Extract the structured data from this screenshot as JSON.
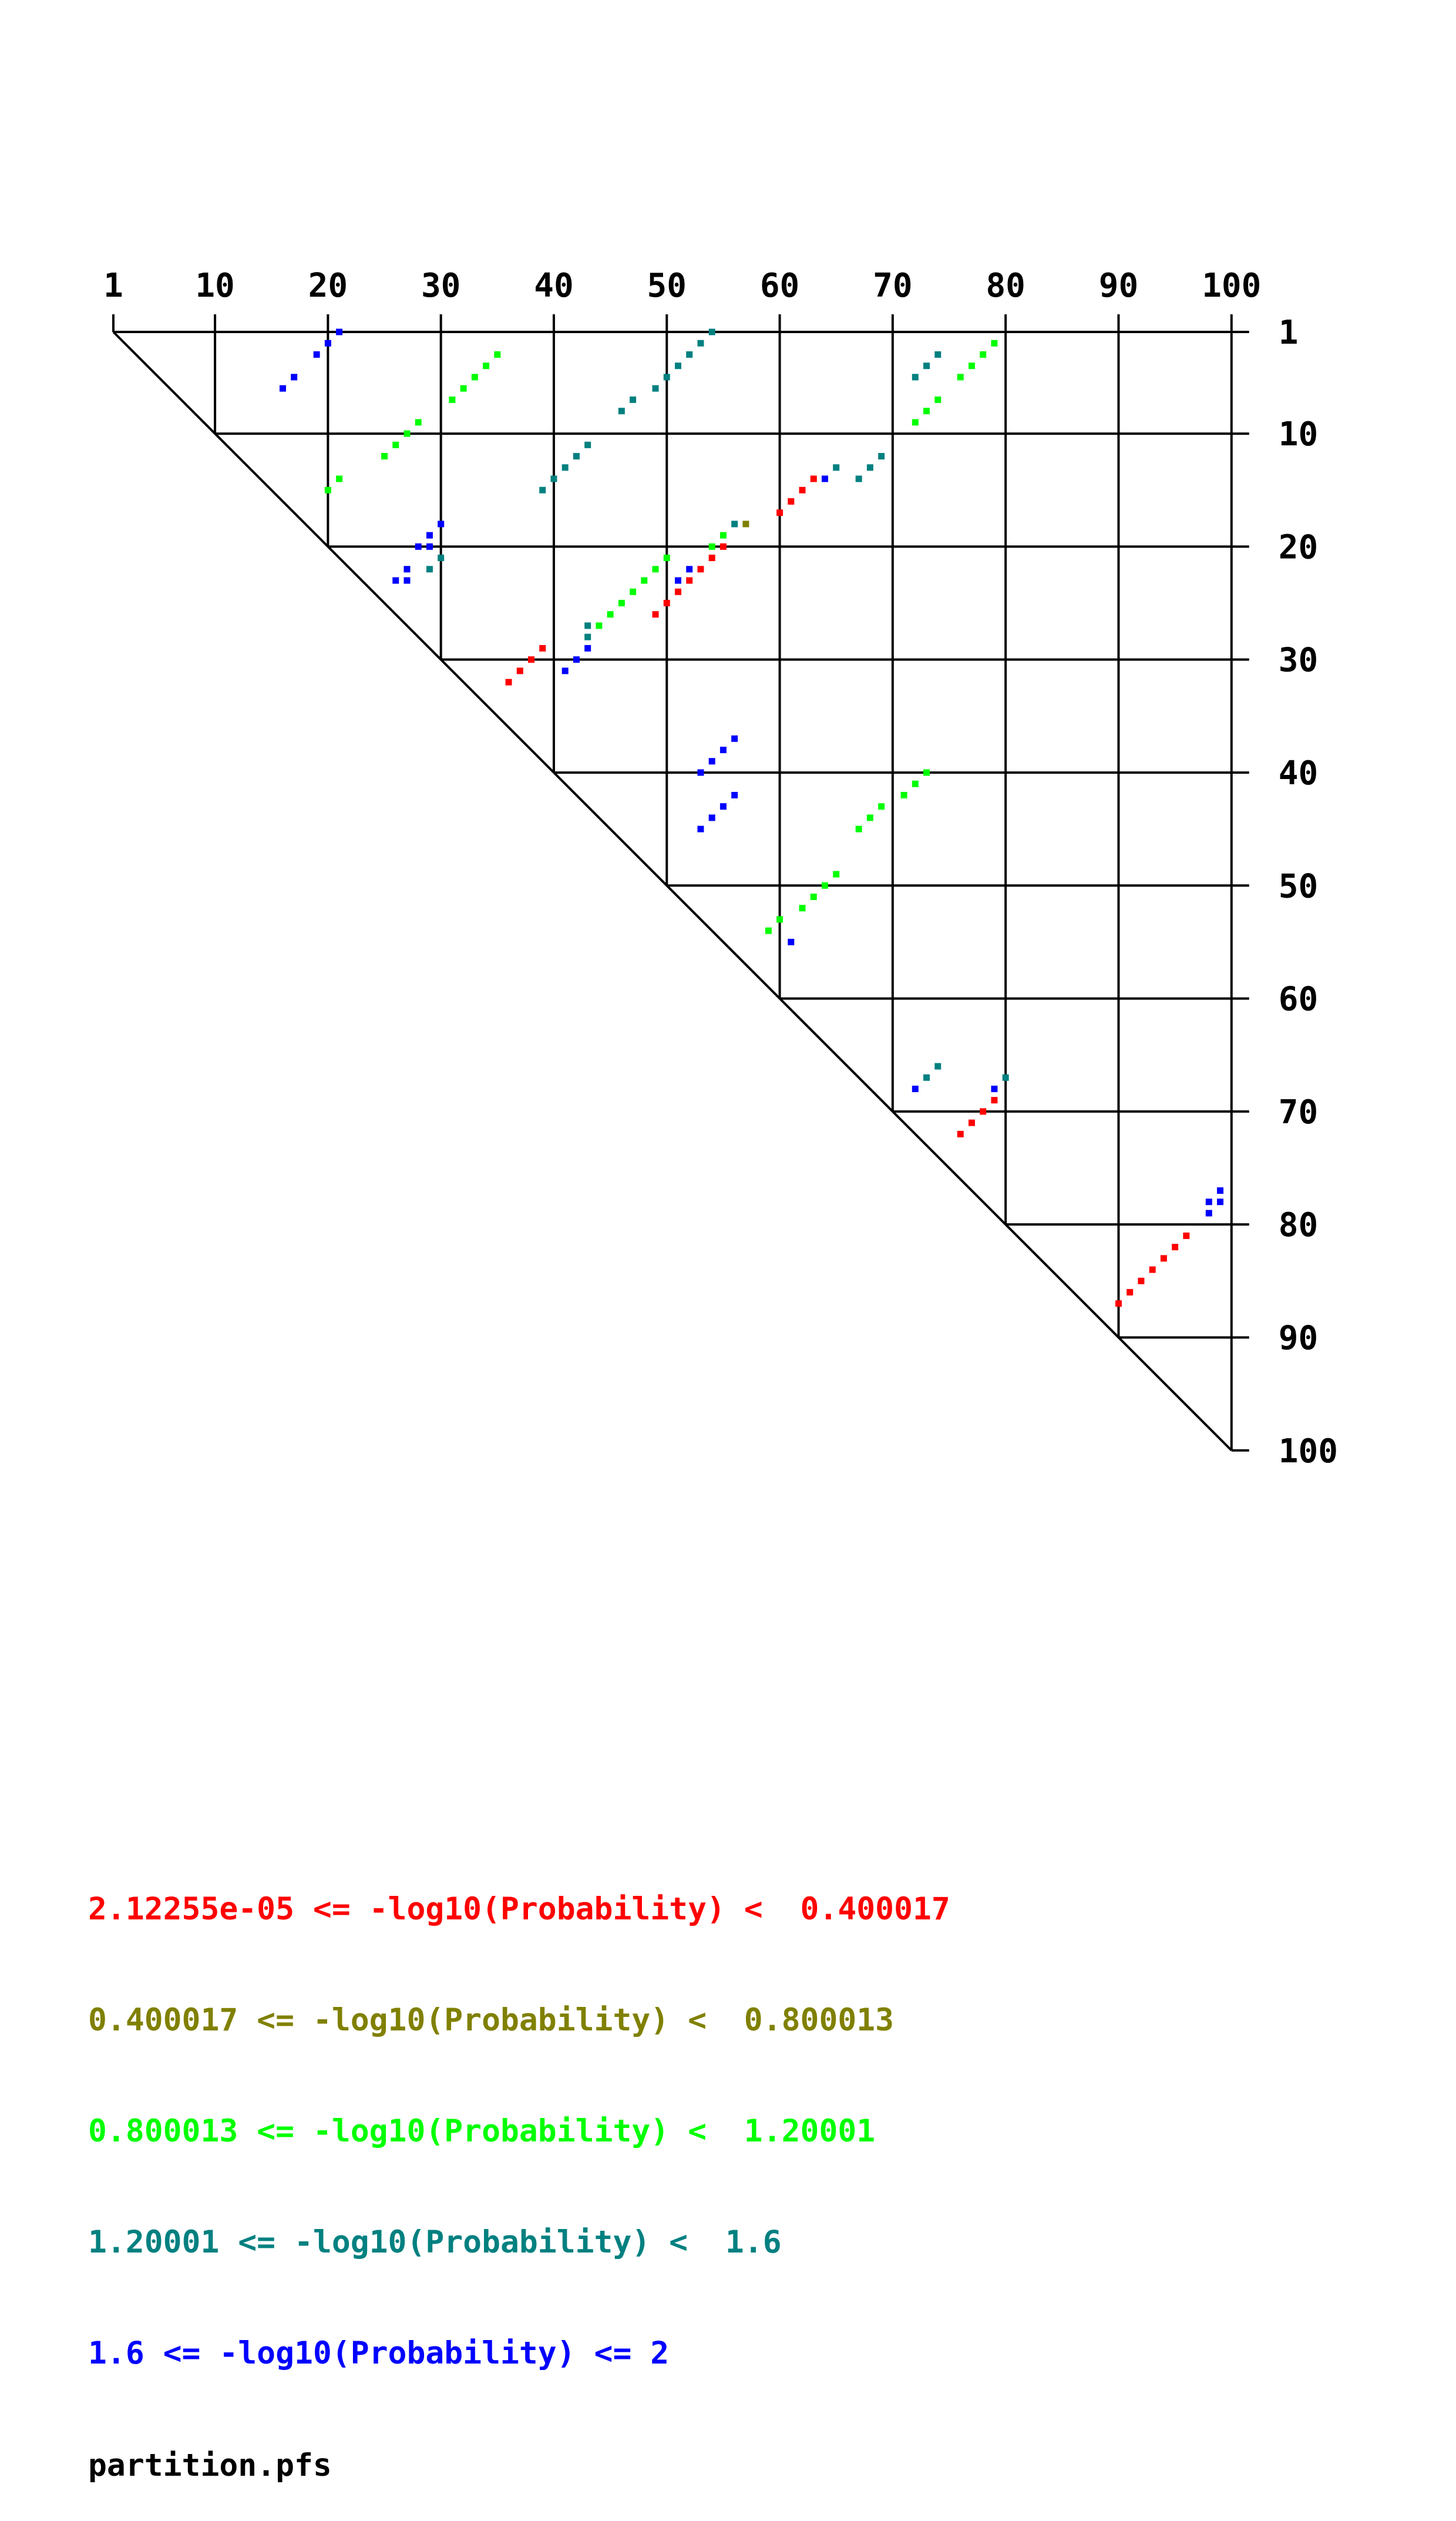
{
  "chart_data": {
    "type": "dotplot",
    "length": 100,
    "x_ticks": [
      1,
      10,
      20,
      30,
      40,
      50,
      60,
      70,
      80,
      90,
      100
    ],
    "y_ticks": [
      1,
      10,
      20,
      30,
      40,
      50,
      60,
      70,
      80,
      90,
      100
    ],
    "tick_labels": [
      "1",
      "10",
      "20",
      "30",
      "40",
      "50",
      "60",
      "70",
      "80",
      "90",
      "100"
    ],
    "legend": [
      {
        "text": "2.12255e-05 <= -log10(Probability) <  0.400017",
        "color": "#ff0000"
      },
      {
        "text": "0.400017 <= -log10(Probability) <  0.800013",
        "color": "#808000"
      },
      {
        "text": "0.800013 <= -log10(Probability) <  1.20001",
        "color": "#00ff00"
      },
      {
        "text": "1.20001 <= -log10(Probability) <  1.6",
        "color": "#008080"
      },
      {
        "text": "1.6 <= -log10(Probability) <= 2",
        "color": "#0000ff"
      }
    ],
    "caption": "partition.pfs",
    "points": [
      {
        "i": 1,
        "j": 21,
        "c": 4
      },
      {
        "i": 2,
        "j": 20,
        "c": 4
      },
      {
        "i": 3,
        "j": 19,
        "c": 4
      },
      {
        "i": 5,
        "j": 17,
        "c": 4
      },
      {
        "i": 6,
        "j": 16,
        "c": 4
      },
      {
        "i": 3,
        "j": 35,
        "c": 2
      },
      {
        "i": 4,
        "j": 34,
        "c": 2
      },
      {
        "i": 5,
        "j": 33,
        "c": 2
      },
      {
        "i": 6,
        "j": 32,
        "c": 2
      },
      {
        "i": 7,
        "j": 31,
        "c": 2
      },
      {
        "i": 9,
        "j": 28,
        "c": 2
      },
      {
        "i": 10,
        "j": 27,
        "c": 2
      },
      {
        "i": 11,
        "j": 26,
        "c": 2
      },
      {
        "i": 12,
        "j": 25,
        "c": 2
      },
      {
        "i": 14,
        "j": 21,
        "c": 2
      },
      {
        "i": 15,
        "j": 20,
        "c": 2
      },
      {
        "i": 1,
        "j": 54,
        "c": 3
      },
      {
        "i": 2,
        "j": 53,
        "c": 3
      },
      {
        "i": 3,
        "j": 52,
        "c": 3
      },
      {
        "i": 4,
        "j": 51,
        "c": 3
      },
      {
        "i": 5,
        "j": 50,
        "c": 3
      },
      {
        "i": 6,
        "j": 49,
        "c": 3
      },
      {
        "i": 7,
        "j": 47,
        "c": 3
      },
      {
        "i": 8,
        "j": 46,
        "c": 3
      },
      {
        "i": 11,
        "j": 43,
        "c": 3
      },
      {
        "i": 12,
        "j": 42,
        "c": 3
      },
      {
        "i": 13,
        "j": 41,
        "c": 3
      },
      {
        "i": 14,
        "j": 40,
        "c": 3
      },
      {
        "i": 15,
        "j": 39,
        "c": 3
      },
      {
        "i": 3,
        "j": 74,
        "c": 3
      },
      {
        "i": 4,
        "j": 73,
        "c": 3
      },
      {
        "i": 5,
        "j": 72,
        "c": 3
      },
      {
        "i": 2,
        "j": 79,
        "c": 2
      },
      {
        "i": 3,
        "j": 78,
        "c": 2
      },
      {
        "i": 4,
        "j": 77,
        "c": 2
      },
      {
        "i": 5,
        "j": 76,
        "c": 2
      },
      {
        "i": 7,
        "j": 74,
        "c": 2
      },
      {
        "i": 8,
        "j": 73,
        "c": 2
      },
      {
        "i": 9,
        "j": 72,
        "c": 2
      },
      {
        "i": 12,
        "j": 69,
        "c": 3
      },
      {
        "i": 13,
        "j": 68,
        "c": 3
      },
      {
        "i": 14,
        "j": 67,
        "c": 3
      },
      {
        "i": 13,
        "j": 65,
        "c": 3
      },
      {
        "i": 14,
        "j": 64,
        "c": 4
      },
      {
        "i": 14,
        "j": 63,
        "c": 0
      },
      {
        "i": 15,
        "j": 62,
        "c": 0
      },
      {
        "i": 16,
        "j": 61,
        "c": 0
      },
      {
        "i": 17,
        "j": 60,
        "c": 0
      },
      {
        "i": 18,
        "j": 30,
        "c": 4
      },
      {
        "i": 19,
        "j": 29,
        "c": 4
      },
      {
        "i": 20,
        "j": 28,
        "c": 4
      },
      {
        "i": 20,
        "j": 29,
        "c": 4
      },
      {
        "i": 21,
        "j": 30,
        "c": 3
      },
      {
        "i": 22,
        "j": 29,
        "c": 3
      },
      {
        "i": 22,
        "j": 27,
        "c": 4
      },
      {
        "i": 23,
        "j": 27,
        "c": 4
      },
      {
        "i": 23,
        "j": 26,
        "c": 4
      },
      {
        "i": 18,
        "j": 57,
        "c": 1
      },
      {
        "i": 18,
        "j": 56,
        "c": 3
      },
      {
        "i": 19,
        "j": 55,
        "c": 2
      },
      {
        "i": 20,
        "j": 54,
        "c": 2
      },
      {
        "i": 21,
        "j": 50,
        "c": 2
      },
      {
        "i": 22,
        "j": 49,
        "c": 2
      },
      {
        "i": 23,
        "j": 48,
        "c": 2
      },
      {
        "i": 24,
        "j": 47,
        "c": 2
      },
      {
        "i": 25,
        "j": 46,
        "c": 2
      },
      {
        "i": 26,
        "j": 45,
        "c": 2
      },
      {
        "i": 27,
        "j": 44,
        "c": 2
      },
      {
        "i": 20,
        "j": 55,
        "c": 0
      },
      {
        "i": 21,
        "j": 54,
        "c": 0
      },
      {
        "i": 22,
        "j": 53,
        "c": 0
      },
      {
        "i": 23,
        "j": 52,
        "c": 0
      },
      {
        "i": 24,
        "j": 51,
        "c": 0
      },
      {
        "i": 25,
        "j": 50,
        "c": 0
      },
      {
        "i": 26,
        "j": 49,
        "c": 0
      },
      {
        "i": 22,
        "j": 52,
        "c": 4
      },
      {
        "i": 23,
        "j": 51,
        "c": 4
      },
      {
        "i": 27,
        "j": 43,
        "c": 3
      },
      {
        "i": 28,
        "j": 43,
        "c": 3
      },
      {
        "i": 29,
        "j": 43,
        "c": 4
      },
      {
        "i": 30,
        "j": 42,
        "c": 4
      },
      {
        "i": 31,
        "j": 41,
        "c": 4
      },
      {
        "i": 29,
        "j": 39,
        "c": 0
      },
      {
        "i": 30,
        "j": 38,
        "c": 0
      },
      {
        "i": 31,
        "j": 37,
        "c": 0
      },
      {
        "i": 32,
        "j": 36,
        "c": 0
      },
      {
        "i": 37,
        "j": 56,
        "c": 4
      },
      {
        "i": 38,
        "j": 55,
        "c": 4
      },
      {
        "i": 39,
        "j": 54,
        "c": 4
      },
      {
        "i": 40,
        "j": 53,
        "c": 4
      },
      {
        "i": 42,
        "j": 56,
        "c": 4
      },
      {
        "i": 43,
        "j": 55,
        "c": 4
      },
      {
        "i": 44,
        "j": 54,
        "c": 4
      },
      {
        "i": 45,
        "j": 53,
        "c": 4
      },
      {
        "i": 40,
        "j": 73,
        "c": 2
      },
      {
        "i": 41,
        "j": 72,
        "c": 2
      },
      {
        "i": 42,
        "j": 71,
        "c": 2
      },
      {
        "i": 43,
        "j": 69,
        "c": 2
      },
      {
        "i": 44,
        "j": 68,
        "c": 2
      },
      {
        "i": 45,
        "j": 67,
        "c": 2
      },
      {
        "i": 49,
        "j": 65,
        "c": 2
      },
      {
        "i": 50,
        "j": 64,
        "c": 2
      },
      {
        "i": 51,
        "j": 63,
        "c": 2
      },
      {
        "i": 52,
        "j": 62,
        "c": 2
      },
      {
        "i": 53,
        "j": 60,
        "c": 2
      },
      {
        "i": 54,
        "j": 59,
        "c": 2
      },
      {
        "i": 55,
        "j": 61,
        "c": 4
      },
      {
        "i": 66,
        "j": 74,
        "c": 3
      },
      {
        "i": 67,
        "j": 73,
        "c": 3
      },
      {
        "i": 68,
        "j": 72,
        "c": 4
      },
      {
        "i": 67,
        "j": 80,
        "c": 3
      },
      {
        "i": 68,
        "j": 79,
        "c": 4
      },
      {
        "i": 69,
        "j": 79,
        "c": 0
      },
      {
        "i": 70,
        "j": 78,
        "c": 0
      },
      {
        "i": 71,
        "j": 77,
        "c": 0
      },
      {
        "i": 72,
        "j": 76,
        "c": 0
      },
      {
        "i": 77,
        "j": 99,
        "c": 4
      },
      {
        "i": 78,
        "j": 98,
        "c": 4
      },
      {
        "i": 78,
        "j": 99,
        "c": 4
      },
      {
        "i": 79,
        "j": 98,
        "c": 4
      },
      {
        "i": 81,
        "j": 96,
        "c": 0
      },
      {
        "i": 82,
        "j": 95,
        "c": 0
      },
      {
        "i": 83,
        "j": 94,
        "c": 0
      },
      {
        "i": 84,
        "j": 93,
        "c": 0
      },
      {
        "i": 85,
        "j": 92,
        "c": 0
      },
      {
        "i": 86,
        "j": 91,
        "c": 0
      },
      {
        "i": 87,
        "j": 90,
        "c": 0
      }
    ]
  }
}
